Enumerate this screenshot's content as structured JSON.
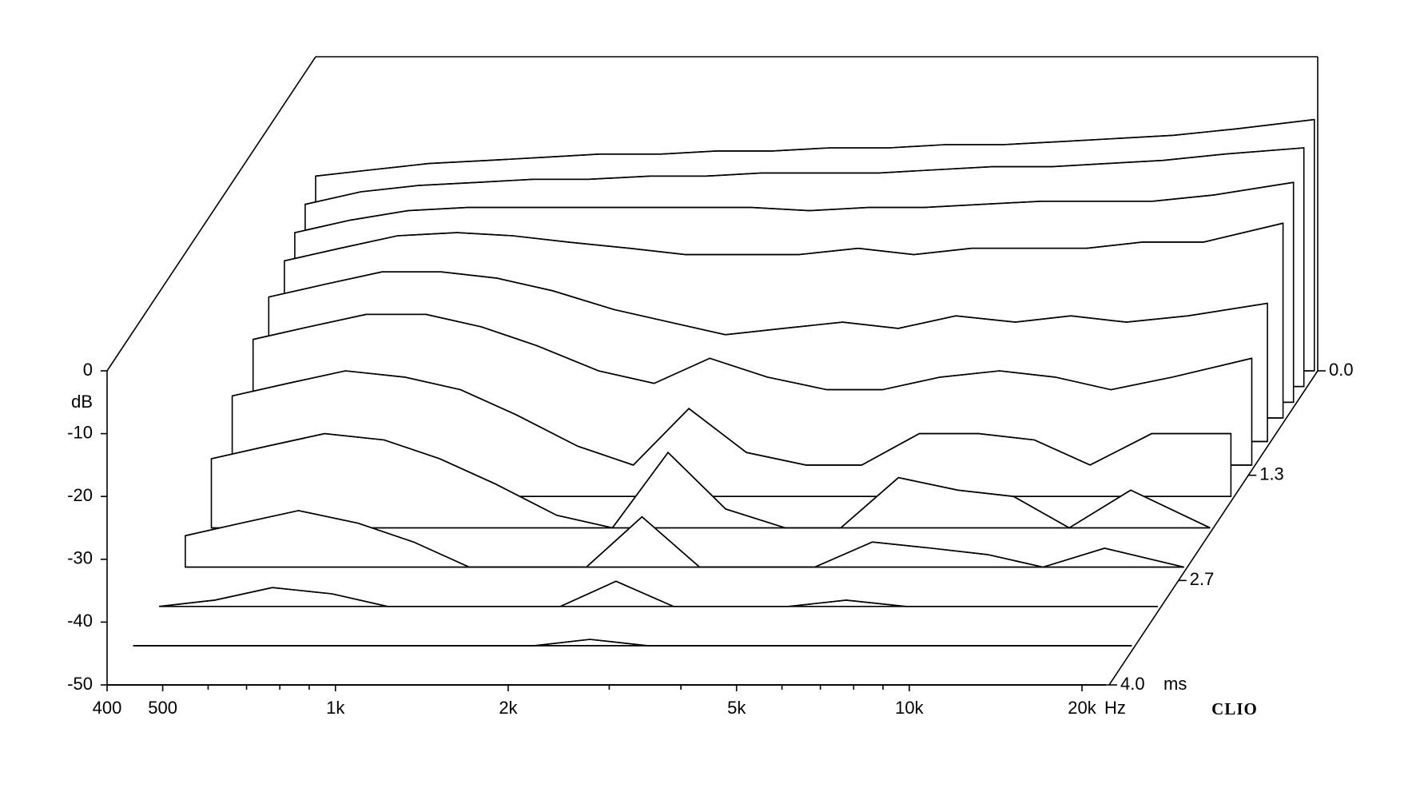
{
  "chart_data": {
    "type": "waterfall",
    "y_label": "dB",
    "x_unit": "Hz",
    "z_unit": "ms",
    "brand": "CLIO",
    "log_x": true,
    "color": "#000000",
    "xlim": [
      400,
      22300
    ],
    "ylim": [
      -50,
      0
    ],
    "zlim": [
      0,
      4
    ],
    "xticks": [
      400,
      500,
      {
        "value": 1000,
        "label": "1k"
      },
      {
        "value": 2000,
        "label": "2k"
      },
      {
        "value": 5000,
        "label": "5k"
      },
      {
        "value": 10000,
        "label": "10k"
      },
      {
        "value": 20000,
        "label": "20k"
      }
    ],
    "xminor": [
      600,
      700,
      800,
      900,
      3000,
      4000,
      6000,
      7000,
      8000,
      9000
    ],
    "yticks": [
      0,
      -10,
      -20,
      -30,
      -40,
      -50
    ],
    "zticks": [
      {
        "value": 0,
        "label": "0.0"
      },
      {
        "value": 1.33,
        "label": "1.3"
      },
      {
        "value": 2.67,
        "label": "2.7"
      },
      {
        "value": 4,
        "label": "4.0"
      }
    ],
    "x": [
      400,
      500,
      630,
      800,
      1000,
      1250,
      1600,
      2000,
      2500,
      3150,
      4000,
      5000,
      6300,
      8000,
      10000,
      12500,
      16000,
      22000
    ],
    "series": [
      {
        "t": 0,
        "values": [
          -19,
          -18,
          -17,
          -16.5,
          -16,
          -15.5,
          -15.5,
          -15,
          -15,
          -14.5,
          -14.5,
          -14,
          -14,
          -13.5,
          -13,
          -12.5,
          -11.5,
          -10
        ]
      },
      {
        "t": 0.2,
        "values": [
          -21,
          -19,
          -18,
          -17.5,
          -17,
          -17,
          -16.5,
          -16.5,
          -16,
          -16,
          -16,
          -15.5,
          -15,
          -15,
          -14.5,
          -14,
          -13,
          -12
        ]
      },
      {
        "t": 0.4,
        "values": [
          -23,
          -21,
          -19.5,
          -19,
          -19,
          -19,
          -19,
          -19,
          -19,
          -19.5,
          -19,
          -19,
          -18.5,
          -18,
          -18,
          -18,
          -17,
          -15
        ]
      },
      {
        "t": 0.6,
        "values": [
          -25,
          -23,
          -21,
          -20.5,
          -21,
          -22,
          -23,
          -24,
          -24,
          -24,
          -23,
          -24,
          -23,
          -23,
          -23,
          -22,
          -22,
          -19
        ]
      },
      {
        "t": 0.9,
        "values": [
          -27,
          -25,
          -23,
          -23,
          -24,
          -26,
          -29,
          -31,
          -33,
          -32,
          -31,
          -32,
          -30,
          -31,
          -30,
          -31,
          -30,
          -28
        ]
      },
      {
        "t": 1.2,
        "values": [
          -30,
          -28,
          -26,
          -26,
          -28,
          -31,
          -35,
          -37,
          -33,
          -36,
          -38,
          -38,
          -36,
          -35,
          -36,
          -38,
          -36,
          -33
        ]
      },
      {
        "t": 1.6,
        "values": [
          -34,
          -32,
          -30,
          -31,
          -33,
          -37,
          -42,
          -45,
          -36,
          -43,
          -45,
          -45,
          -40,
          -40,
          -41,
          -45,
          -40,
          -40
        ]
      },
      {
        "t": 2.0,
        "values": [
          -39,
          -37,
          -35,
          -36,
          -39,
          -43,
          -48,
          -50,
          -38,
          -47,
          -50,
          -50,
          -42,
          -44,
          -45,
          -50,
          -44,
          -50
        ]
      },
      {
        "t": 2.5,
        "values": [
          -45,
          -43,
          -41,
          -43,
          -46,
          -50,
          -50,
          -50,
          -42,
          -50,
          -50,
          -50,
          -46,
          -47,
          -48,
          -50,
          -47,
          -50
        ]
      },
      {
        "t": 3.0,
        "values": [
          -50,
          -49,
          -47,
          -48,
          -50,
          -50,
          -50,
          -50,
          -46,
          -50,
          -50,
          -50,
          -49,
          -50,
          -50,
          -50,
          -50,
          -50
        ]
      },
      {
        "t": 3.5,
        "values": [
          -50,
          -50,
          -50,
          -50,
          -50,
          -50,
          -50,
          -50,
          -49,
          -50,
          -50,
          -50,
          -50,
          -50,
          -50,
          -50,
          -50,
          -50
        ]
      },
      {
        "t": 4.0,
        "values": [
          -50,
          -50,
          -50,
          -50,
          -50,
          -50,
          -50,
          -50,
          -50,
          -50,
          -50,
          -50,
          -50,
          -50,
          -50,
          -50,
          -50,
          -50
        ]
      }
    ]
  }
}
